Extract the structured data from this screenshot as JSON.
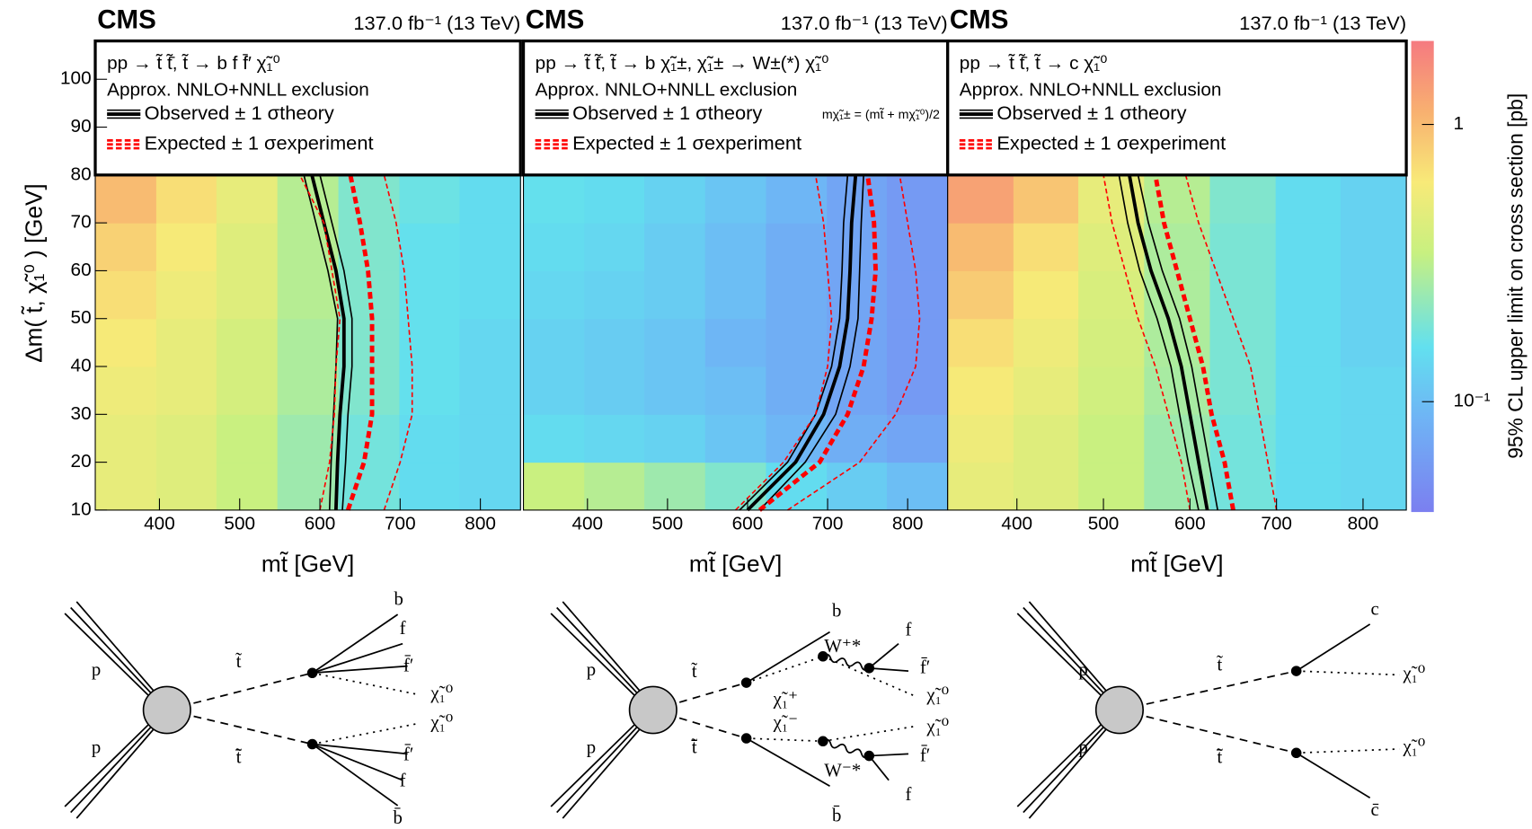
{
  "chart_data": [
    {
      "type": "heatmap-contour",
      "title": "CMS",
      "subtitle": "137.0 fb⁻¹ (13 TeV)",
      "process": "pp → t̃ t̃̄, t̃ → b f f̄′ χ̃₁⁰",
      "legend_title": "Approx. NNLO+NNLL exclusion",
      "x_label": "mt̃ [GeV]",
      "y_label": "Δm( t̃, χ̃₁⁰ ) [GeV]",
      "xlim": [
        320,
        850
      ],
      "ylim": [
        10,
        108
      ],
      "xticks": [
        400,
        500,
        600,
        700,
        800
      ],
      "yticks": [
        10,
        20,
        30,
        40,
        50,
        60,
        70,
        80,
        90,
        100
      ],
      "xbins": [
        320,
        396,
        471,
        547,
        623,
        699,
        774,
        850
      ],
      "ybins": [
        10,
        20,
        30,
        40,
        50,
        60,
        70,
        80
      ],
      "z": [
        [
          0.5,
          0.45,
          0.35,
          0.25,
          0.18,
          0.15,
          0.14
        ],
        [
          0.5,
          0.45,
          0.35,
          0.25,
          0.18,
          0.15,
          0.14
        ],
        [
          0.55,
          0.5,
          0.4,
          0.28,
          0.2,
          0.16,
          0.14
        ],
        [
          0.6,
          0.5,
          0.4,
          0.28,
          0.2,
          0.16,
          0.14
        ],
        [
          0.7,
          0.55,
          0.45,
          0.3,
          0.2,
          0.16,
          0.15
        ],
        [
          0.8,
          0.6,
          0.45,
          0.3,
          0.2,
          0.16,
          0.15
        ],
        [
          1.0,
          0.7,
          0.5,
          0.3,
          0.2,
          0.17,
          0.15
        ]
      ],
      "contour_y": [
        10,
        20,
        30,
        40,
        50,
        60,
        70,
        80
      ],
      "series": [
        {
          "name": "Observed ± 1 σtheory",
          "color": "#000000",
          "x": [
            620,
            622,
            625,
            630,
            630,
            620,
            605,
            590
          ],
          "x_minus": [
            612,
            614,
            617,
            620,
            622,
            610,
            595,
            580
          ],
          "x_plus": [
            628,
            632,
            635,
            640,
            640,
            630,
            615,
            600
          ]
        },
        {
          "name": "Expected ± 1 σexperiment",
          "color": "#ff0000",
          "x": [
            635,
            655,
            665,
            665,
            665,
            660,
            650,
            638
          ],
          "x_minus": [
            600,
            612,
            618,
            620,
            625,
            615,
            605,
            575
          ],
          "x_plus": [
            680,
            700,
            715,
            715,
            710,
            705,
            695,
            680
          ]
        }
      ]
    },
    {
      "type": "heatmap-contour",
      "title": "CMS",
      "subtitle": "137.0 fb⁻¹ (13 TeV)",
      "process": "pp → t̃ t̃̄, t̃ → b χ̃₁±, χ̃₁± → W±(*) χ̃₁⁰",
      "legend_title": "Approx. NNLO+NNLL exclusion",
      "annotation": "mχ̃₁± = (mt̃ + mχ̃₁⁰)/2",
      "x_label": "mt̃ [GeV]",
      "xlim": [
        320,
        850
      ],
      "ylim": [
        10,
        108
      ],
      "xticks": [
        400,
        500,
        600,
        700,
        800
      ],
      "xbins": [
        320,
        396,
        471,
        547,
        623,
        699,
        774,
        850
      ],
      "ybins": [
        10,
        20,
        30,
        40,
        50,
        60,
        70,
        80
      ],
      "z": [
        [
          0.35,
          0.3,
          0.25,
          0.2,
          0.15,
          0.12,
          0.1
        ],
        [
          0.15,
          0.14,
          0.13,
          0.11,
          0.09,
          0.08,
          0.07
        ],
        [
          0.13,
          0.12,
          0.11,
          0.1,
          0.08,
          0.07,
          0.06
        ],
        [
          0.13,
          0.12,
          0.11,
          0.09,
          0.08,
          0.07,
          0.06
        ],
        [
          0.14,
          0.13,
          0.12,
          0.1,
          0.08,
          0.07,
          0.06
        ],
        [
          0.15,
          0.14,
          0.12,
          0.1,
          0.08,
          0.07,
          0.06
        ],
        [
          0.16,
          0.15,
          0.13,
          0.11,
          0.09,
          0.07,
          0.06
        ]
      ],
      "contour_y": [
        10,
        20,
        30,
        40,
        50,
        60,
        70,
        80
      ],
      "series": [
        {
          "name": "Observed ± 1 σtheory",
          "color": "#000000",
          "x": [
            600,
            660,
            695,
            715,
            725,
            728,
            730,
            735
          ],
          "x_minus": [
            590,
            650,
            685,
            705,
            715,
            718,
            720,
            725
          ],
          "x_plus": [
            615,
            672,
            710,
            728,
            738,
            740,
            742,
            745
          ]
        },
        {
          "name": "Expected ± 1 σexperiment",
          "color": "#ff0000",
          "x": [
            615,
            690,
            725,
            745,
            755,
            760,
            758,
            750
          ],
          "x_minus": [
            585,
            645,
            685,
            700,
            705,
            700,
            695,
            685
          ],
          "x_plus": [
            650,
            740,
            785,
            810,
            815,
            810,
            800,
            790
          ]
        }
      ]
    },
    {
      "type": "heatmap-contour",
      "title": "CMS",
      "subtitle": "137.0 fb⁻¹ (13 TeV)",
      "process": "pp → t̃ t̃̄, t̃ → c χ̃₁⁰",
      "legend_title": "Approx. NNLO+NNLL exclusion",
      "x_label": "mt̃ [GeV]",
      "xlim": [
        320,
        850
      ],
      "ylim": [
        10,
        108
      ],
      "xticks": [
        400,
        500,
        600,
        700,
        800
      ],
      "xbins": [
        320,
        396,
        471,
        547,
        623,
        699,
        774,
        850
      ],
      "ybins": [
        10,
        20,
        30,
        40,
        50,
        60,
        70,
        80
      ],
      "z": [
        [
          0.5,
          0.45,
          0.35,
          0.25,
          0.18,
          0.15,
          0.14
        ],
        [
          0.55,
          0.45,
          0.35,
          0.25,
          0.18,
          0.15,
          0.14
        ],
        [
          0.6,
          0.5,
          0.38,
          0.27,
          0.19,
          0.15,
          0.14
        ],
        [
          0.7,
          0.55,
          0.4,
          0.28,
          0.19,
          0.15,
          0.13
        ],
        [
          0.85,
          0.6,
          0.42,
          0.28,
          0.19,
          0.15,
          0.13
        ],
        [
          1.0,
          0.7,
          0.45,
          0.28,
          0.19,
          0.15,
          0.13
        ],
        [
          1.3,
          0.9,
          0.5,
          0.3,
          0.2,
          0.15,
          0.13
        ]
      ],
      "contour_y": [
        10,
        20,
        30,
        40,
        50,
        60,
        70,
        80
      ],
      "series": [
        {
          "name": "Observed ± 1 σtheory",
          "color": "#000000",
          "x": [
            620,
            610,
            600,
            590,
            575,
            555,
            540,
            530
          ],
          "x_minus": [
            610,
            598,
            588,
            578,
            562,
            542,
            528,
            518
          ],
          "x_plus": [
            632,
            622,
            612,
            602,
            588,
            568,
            552,
            540
          ]
        },
        {
          "name": "Expected ± 1 σexperiment",
          "color": "#ff0000",
          "x": [
            650,
            640,
            625,
            615,
            600,
            585,
            570,
            560
          ],
          "x_minus": [
            600,
            590,
            575,
            560,
            540,
            525,
            510,
            500
          ],
          "x_plus": [
            700,
            690,
            680,
            670,
            650,
            630,
            610,
            595
          ]
        }
      ]
    }
  ],
  "colorbar": {
    "label": "95% CL upper limit on cross section [pb]",
    "clim": [
      0.04,
      2
    ],
    "log": true,
    "ticks": [
      {
        "value": 0.1,
        "label": "10⁻¹"
      },
      1
    ]
  },
  "diagrams": [
    {
      "labels": [
        "p",
        "p",
        "t̃",
        "t̃̄",
        "b",
        "f",
        "f̄′",
        "χ̃₁⁰",
        "χ̃₁⁰",
        "f̄′",
        "f",
        "b̄"
      ]
    },
    {
      "labels": [
        "p",
        "p",
        "t̃",
        "t̃̄",
        "b",
        "χ̃₁⁺",
        "W⁺*",
        "f",
        "f̄′",
        "χ̃₁⁰",
        "χ̃₁⁻",
        "W⁻*",
        "χ̃₁⁰",
        "f̄′",
        "f",
        "b̄"
      ]
    },
    {
      "labels": [
        "p",
        "p",
        "t̃",
        "t̃̄",
        "c",
        "χ̃₁⁰",
        "χ̃₁⁰",
        "c̄"
      ]
    }
  ]
}
